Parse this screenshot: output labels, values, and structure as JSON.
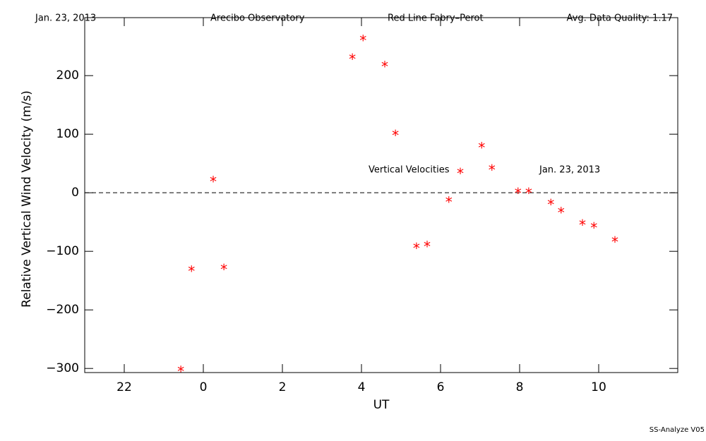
{
  "chart_data": {
    "type": "scatter",
    "header": [
      "Jan. 23, 2013",
      "Arecibo Observatory",
      "Red Line Fabry–Perot",
      "Avg. Data Quality: 1.17"
    ],
    "ylabel": "Relative Vertical Wind Velocity (m/s)",
    "xlabel": "UT",
    "annotations": [
      "Vertical Velocities",
      "Jan. 23, 2013"
    ],
    "footer": "SS-Analyze V05",
    "color": "#ff0000",
    "marker": "*",
    "hline": 0,
    "xlim": [
      -3,
      12
    ],
    "ylim": [
      -307,
      299
    ],
    "xticks": [
      {
        "value": -2,
        "label": "22"
      },
      0,
      2,
      4,
      6,
      8,
      10
    ],
    "yticks": [
      {
        "value": -300,
        "label": "−300"
      },
      {
        "value": -200,
        "label": "−200"
      },
      {
        "value": -100,
        "label": "−100"
      },
      0,
      100,
      200
    ],
    "x": [
      -0.57,
      -0.3,
      0.25,
      0.52,
      3.77,
      4.04,
      4.59,
      4.86,
      5.39,
      5.66,
      6.21,
      6.5,
      7.04,
      7.3,
      7.96,
      8.23,
      8.79,
      9.05,
      9.59,
      9.88,
      10.41
    ],
    "values": [
      -302,
      -131,
      22,
      -128,
      231,
      263,
      218,
      101,
      -92,
      -89,
      -13,
      36,
      80,
      42,
      2,
      2,
      -17,
      -31,
      -52,
      -57,
      -81
    ]
  }
}
